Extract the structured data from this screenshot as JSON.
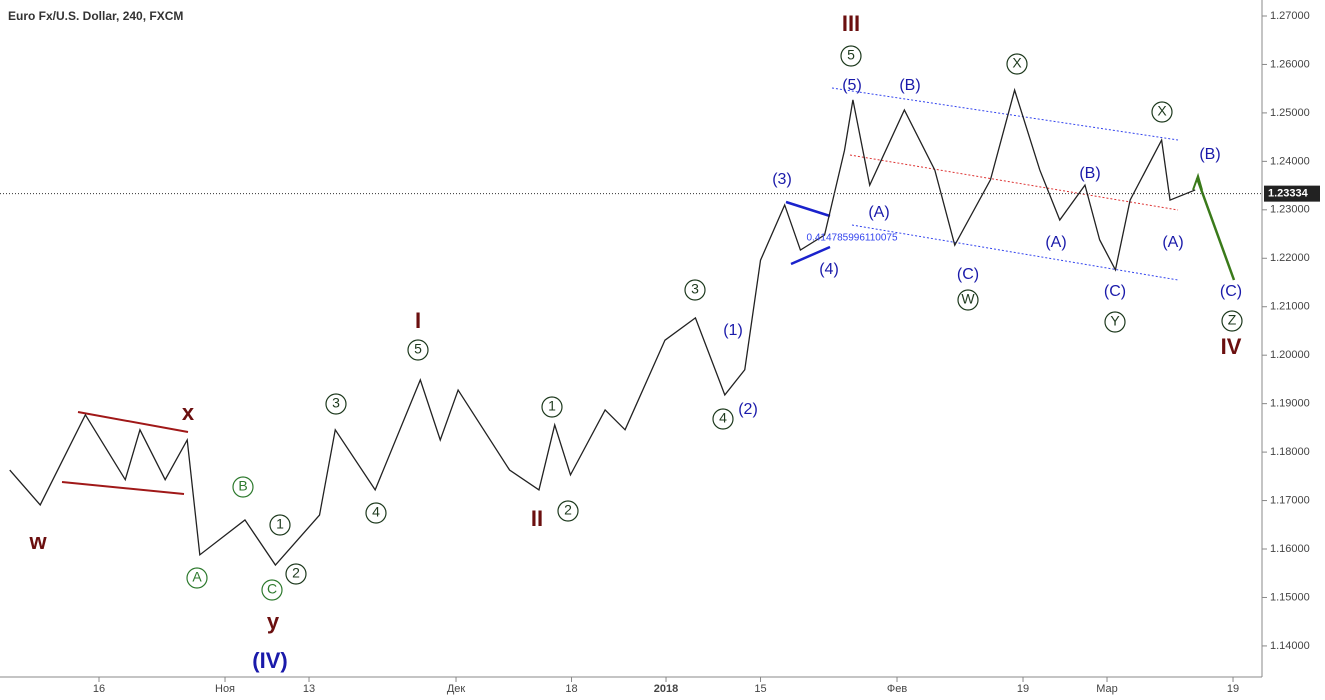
{
  "chart_data": {
    "type": "line",
    "title": "Euro Fx/U.S. Dollar, 240, FXCM",
    "series": [
      {
        "name": null,
        "color": "#222222",
        "x": [
          -8.5,
          -5.6,
          -1.3,
          2.5,
          3.9,
          6.3,
          8.4,
          9.6,
          13.9,
          16.8,
          21,
          22.5,
          26.3,
          30.6,
          32.5,
          34.2,
          39.1,
          41.9,
          43.4,
          44.9,
          48.2,
          50.1,
          53.9,
          56.8,
          59.6,
          61.5,
          63,
          65.3,
          66.8,
          69.1,
          71,
          71.8,
          73.4,
          76.7,
          79.6,
          81.5,
          84.9,
          87.2,
          89.6,
          91.5,
          93.9,
          95.3,
          96.8,
          98.2,
          101.2,
          102,
          104.4
        ],
        "values": [
          1.1763,
          1.1691,
          1.1877,
          1.1743,
          1.1846,
          1.1743,
          1.1825,
          1.1588,
          1.166,
          1.1567,
          1.167,
          1.1846,
          1.1722,
          1.1949,
          1.1825,
          1.1928,
          1.1763,
          1.1722,
          1.1856,
          1.1753,
          1.1887,
          1.1846,
          1.2031,
          1.2077,
          1.1918,
          1.197,
          1.2196,
          1.231,
          1.2217,
          1.2248,
          1.2423,
          1.2527,
          1.2351,
          1.2506,
          1.2382,
          1.2227,
          1.2362,
          1.2547,
          1.2382,
          1.2279,
          1.2351,
          1.2238,
          1.2176,
          1.232,
          1.2444,
          1.232,
          1.2341
        ]
      }
    ],
    "current_price": {
      "value": 1.23334,
      "label": "1.23334"
    },
    "xlim": [
      -9.43,
      110.76
    ],
    "xticks": [
      {
        "value": 0,
        "label": "16"
      },
      {
        "value": 12,
        "label": "Ноя"
      },
      {
        "value": 20,
        "label": "13"
      },
      {
        "value": 34,
        "label": "Дек"
      },
      {
        "value": 45,
        "label": "18"
      },
      {
        "value": 54,
        "label": "2018"
      },
      {
        "value": 63,
        "label": "15"
      },
      {
        "value": 76,
        "label": "Фев"
      },
      {
        "value": 88,
        "label": "19"
      },
      {
        "value": 96,
        "label": "Мар"
      },
      {
        "value": 108,
        "label": "19"
      }
    ],
    "ylim": [
      1.134,
      1.2733
    ],
    "yticks": [
      {
        "value": 1.14,
        "label": "1.14000"
      },
      {
        "value": 1.15,
        "label": "1.15000"
      },
      {
        "value": 1.16,
        "label": "1.16000"
      },
      {
        "value": 1.17,
        "label": "1.17000"
      },
      {
        "value": 1.18,
        "label": "1.18000"
      },
      {
        "value": 1.19,
        "label": "1.19000"
      },
      {
        "value": 1.2,
        "label": "1.20000"
      },
      {
        "value": 1.21,
        "label": "1.21000"
      },
      {
        "value": 1.22,
        "label": "1.22000"
      },
      {
        "value": 1.23,
        "label": "1.23000"
      },
      {
        "value": 1.24,
        "label": "1.24000"
      },
      {
        "value": 1.25,
        "label": "1.25000"
      },
      {
        "value": 1.26,
        "label": "1.26000"
      },
      {
        "value": 1.27,
        "label": "1.27000"
      }
    ],
    "annotations": [
      "w",
      "x",
      "y",
      "(IV)",
      "I",
      "II",
      "III",
      "IV",
      "A",
      "B",
      "C",
      "1",
      "2",
      "3",
      "4",
      "5",
      "1",
      "2",
      "3",
      "4",
      "5",
      "W",
      "X",
      "Y",
      "X",
      "Z",
      "(1)",
      "(2)",
      "(3)",
      "(4)",
      "(5)",
      "(A)",
      "(B)",
      "(C)",
      "(A)",
      "(B)",
      "(C)",
      "(A)",
      "(B)",
      "(C)",
      "0.414785996110075"
    ]
  }
}
